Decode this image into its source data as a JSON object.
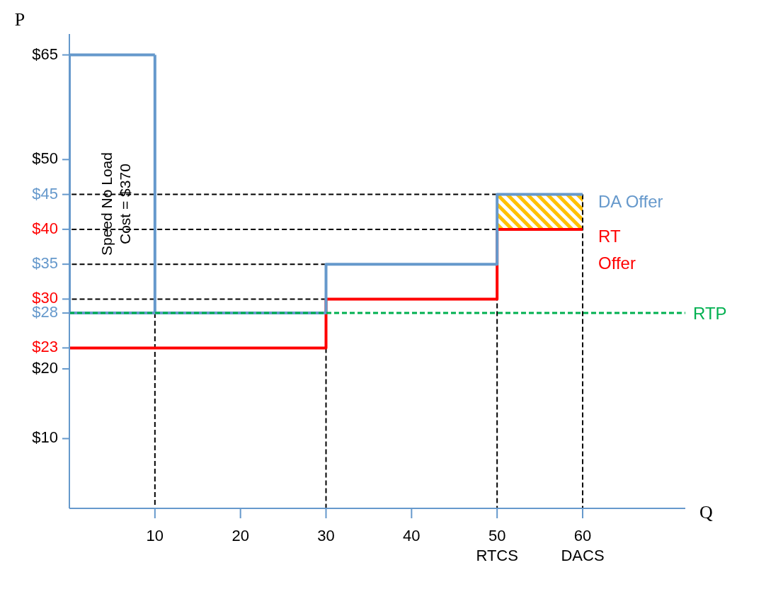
{
  "chart_data": {
    "type": "step",
    "xlabel": "Q",
    "ylabel": "P",
    "xlim": [
      0,
      72
    ],
    "xticks": [
      10,
      20,
      30,
      40,
      {
        "value": 50,
        "label": "50\nRTCS"
      },
      {
        "value": 60,
        "label": "60\nDACS"
      }
    ],
    "ylim": [
      0,
      68
    ],
    "yticks": [
      {
        "value": 10,
        "label": "$10"
      },
      {
        "value": 20,
        "label": "$20"
      },
      {
        "value": 23,
        "label": "$23"
      },
      {
        "value": 28,
        "label": "$28"
      },
      {
        "value": 30,
        "label": "$30"
      },
      {
        "value": 35,
        "label": "$35"
      },
      {
        "value": 40,
        "label": "$40"
      },
      {
        "value": 45,
        "label": "$45"
      },
      {
        "value": 50,
        "label": "$50"
      },
      {
        "value": 65,
        "label": "$65"
      }
    ],
    "marker": "none",
    "series": [
      {
        "type": "line",
        "color": "#000000",
        "line_style": "dashed",
        "x": [
          50,
          0
        ],
        "values": [
          45,
          45
        ]
      },
      {
        "type": "line",
        "color": "#000000",
        "line_style": "dashed",
        "x": [
          50,
          0
        ],
        "values": [
          40,
          40
        ]
      },
      {
        "type": "line",
        "color": "#000000",
        "line_style": "dashed",
        "x": [
          30,
          0
        ],
        "values": [
          35,
          35
        ]
      },
      {
        "type": "line",
        "color": "#000000",
        "line_style": "dashed",
        "x": [
          30,
          0
        ],
        "values": [
          30,
          30
        ]
      },
      {
        "type": "line",
        "color": "#000000",
        "line_style": "dashed",
        "x": [
          10,
          10
        ],
        "values": [
          28,
          0
        ]
      },
      {
        "type": "line",
        "color": "#000000",
        "line_style": "dashed",
        "x": [
          30,
          30
        ],
        "values": [
          23,
          0
        ]
      },
      {
        "type": "line",
        "color": "#000000",
        "line_style": "dashed",
        "x": [
          50,
          50
        ],
        "values": [
          45,
          0
        ]
      },
      {
        "type": "line",
        "color": "#000000",
        "line_style": "dashed",
        "x": [
          60,
          60
        ],
        "values": [
          45,
          0
        ]
      },
      {
        "name": "RT Offer",
        "color": "#ff0000",
        "x": [
          0,
          30,
          50,
          60
        ],
        "values": [
          23,
          30,
          40,
          40
        ]
      },
      {
        "type": "line",
        "color": "#6699cc",
        "x": [
          0,
          0
        ],
        "values": [
          28,
          65
        ]
      },
      {
        "type": "line",
        "color": "#6699cc",
        "x": [
          0,
          10
        ],
        "values": [
          65,
          65
        ]
      },
      {
        "type": "line",
        "color": "#6699cc",
        "x": [
          10,
          10
        ],
        "values": [
          65,
          28
        ]
      },
      {
        "name": "DA Offer",
        "color": "#6699cc",
        "x": [
          0,
          30,
          50,
          60
        ],
        "values": [
          28,
          35,
          45,
          45
        ]
      }
    ],
    "ref_lines": [
      {
        "axis": "y",
        "value": 28,
        "label": "RTP",
        "color": "#00b050",
        "line_style": "dashed"
      }
    ],
    "annotations": [
      "Speed No Load\nCost = $370"
    ]
  }
}
